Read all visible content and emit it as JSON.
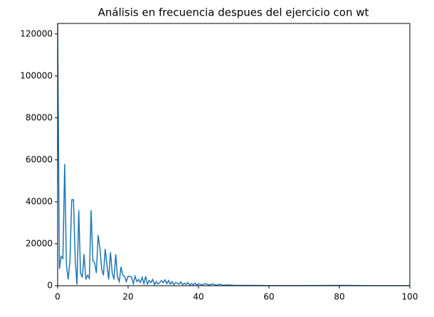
{
  "chart_data": {
    "type": "line",
    "title": "Análisis en frecuencia despues del ejercicio con wt",
    "x": [
      0,
      0.5,
      1,
      1.5,
      2,
      2.5,
      3,
      3.5,
      4,
      4.5,
      5,
      5.5,
      6,
      6.5,
      7,
      7.5,
      8,
      8.5,
      9,
      9.5,
      10,
      10.5,
      11,
      11.5,
      12,
      12.5,
      13,
      13.5,
      14,
      14.5,
      15,
      15.5,
      16,
      16.5,
      17,
      17.5,
      18,
      18.5,
      19,
      19.5,
      20,
      20.5,
      21,
      21.5,
      22,
      22.5,
      23,
      23.5,
      24,
      24.5,
      25,
      25.5,
      26,
      26.5,
      27,
      27.5,
      28,
      28.5,
      29,
      29.5,
      30,
      30.5,
      31,
      31.5,
      32,
      32.5,
      33,
      33.5,
      34,
      34.5,
      35,
      35.5,
      36,
      36.5,
      37,
      37.5,
      38,
      38.5,
      39,
      39.5,
      40,
      41,
      42,
      43,
      44,
      45,
      46,
      47,
      48,
      50,
      55,
      60,
      70,
      80,
      90,
      100
    ],
    "series": [
      {
        "name": "wt",
        "color": "#1f77b4",
        "values": [
          125000,
          8000,
          14000,
          13000,
          58000,
          10000,
          3000,
          12000,
          41000,
          41000,
          12000,
          500,
          36000,
          6000,
          4000,
          15000,
          3000,
          5000,
          3500,
          36000,
          12000,
          11000,
          6000,
          24000,
          18000,
          8000,
          5000,
          17500,
          10000,
          3000,
          16000,
          6000,
          3000,
          15000,
          4000,
          2000,
          9000,
          5000,
          4500,
          2000,
          4500,
          4500,
          4000,
          1000,
          4500,
          2000,
          3000,
          1500,
          4000,
          1000,
          4500,
          800,
          2500,
          1500,
          3000,
          500,
          2000,
          800,
          1500,
          2500,
          1500,
          2800,
          1000,
          2500,
          800,
          2000,
          500,
          1500,
          1200,
          800,
          1800,
          500,
          1200,
          600,
          1500,
          300,
          1000,
          400,
          1200,
          300,
          900,
          400,
          1000,
          300,
          900,
          200,
          700,
          200,
          400,
          200,
          150,
          100,
          80,
          150,
          60,
          50
        ]
      }
    ],
    "xlim": [
      0,
      100
    ],
    "xticks": [
      0,
      20,
      40,
      60,
      80,
      100
    ],
    "ylim": [
      0,
      125000
    ],
    "yticks": [
      0,
      20000,
      40000,
      60000,
      80000,
      100000,
      120000
    ]
  }
}
